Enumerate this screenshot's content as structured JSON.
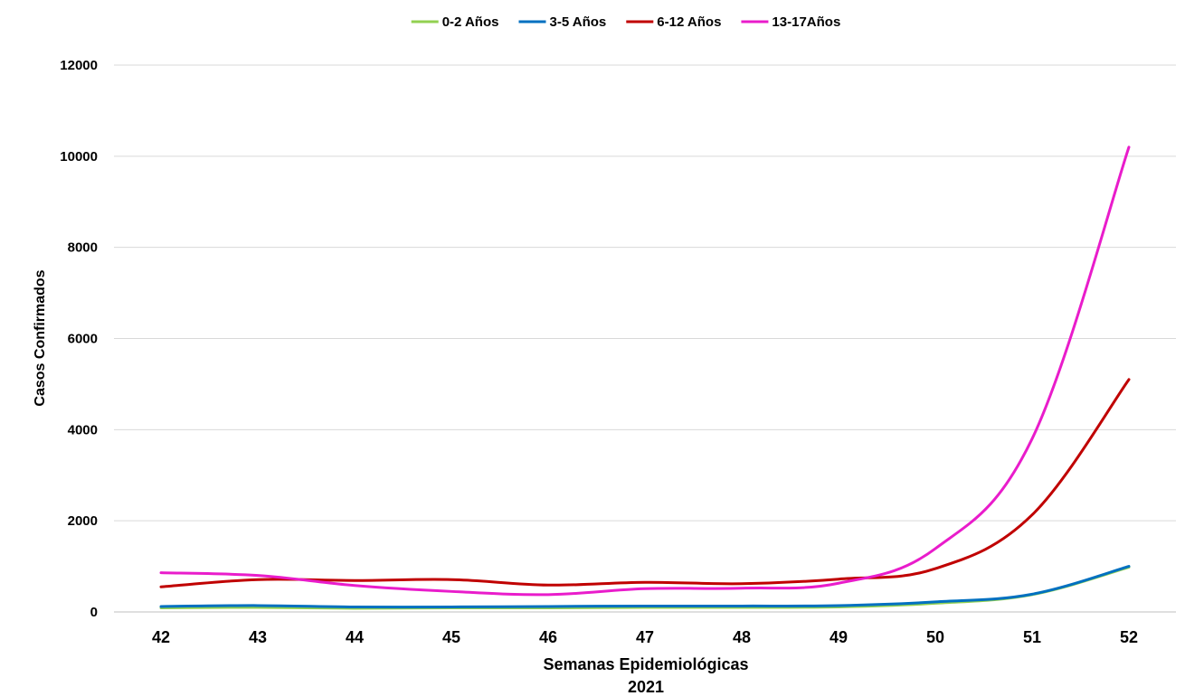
{
  "chart_data": {
    "type": "line",
    "title": "",
    "xlabel": "Semanas Epidemiológicas",
    "xlabel_sub": "2021",
    "ylabel": "Casos Confirmados",
    "categories": [
      "42",
      "43",
      "44",
      "45",
      "46",
      "47",
      "48",
      "49",
      "50",
      "51",
      "52"
    ],
    "yticks": [
      "0",
      "2000",
      "4000",
      "6000",
      "8000",
      "10000",
      "12000"
    ],
    "ylim": [
      0,
      12000
    ],
    "grid": "horizontal",
    "legend_position": "top",
    "series": [
      {
        "name": "0-2 Años",
        "color": "#92d050",
        "values": [
          90,
          100,
          80,
          90,
          90,
          100,
          100,
          110,
          190,
          380,
          980
        ]
      },
      {
        "name": "3-5 Años",
        "color": "#0070c0",
        "values": [
          120,
          140,
          110,
          110,
          120,
          130,
          130,
          140,
          220,
          390,
          1000
        ]
      },
      {
        "name": "6-12 Años",
        "color": "#c00000",
        "values": [
          550,
          710,
          690,
          710,
          590,
          650,
          620,
          720,
          950,
          2130,
          5100
        ]
      },
      {
        "name": "13-17Años",
        "color": "#e91ccb",
        "values": [
          860,
          800,
          580,
          450,
          380,
          510,
          520,
          630,
          1390,
          3800,
          10200
        ]
      }
    ]
  }
}
